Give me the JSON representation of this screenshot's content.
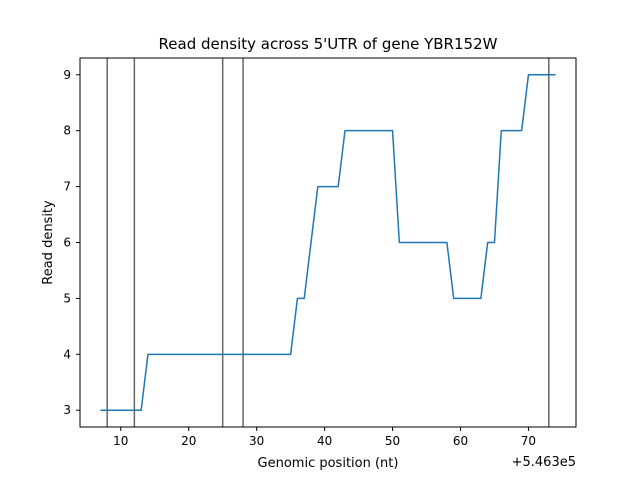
{
  "chart_data": {
    "type": "line",
    "title": "Read density across 5'UTR of gene YBR152W",
    "xlabel": "Genomic position (nt)",
    "ylabel": "Read density",
    "x_offset_label": "+5.463e5",
    "xlim": [
      546304,
      546377
    ],
    "ylim": [
      2.7,
      9.3
    ],
    "x_ticks": [
      546310,
      546320,
      546330,
      546340,
      546350,
      546360,
      546370
    ],
    "x_tick_labels": [
      "10",
      "20",
      "30",
      "40",
      "50",
      "60",
      "70"
    ],
    "y_ticks": [
      3,
      4,
      5,
      6,
      7,
      8,
      9
    ],
    "y_tick_labels": [
      "3",
      "4",
      "5",
      "6",
      "7",
      "8",
      "9"
    ],
    "grid": false,
    "series": [
      {
        "color": "#1f77b4",
        "x": [
          546307,
          546308,
          546309,
          546310,
          546311,
          546312,
          546313,
          546314,
          546315,
          546316,
          546317,
          546318,
          546319,
          546320,
          546321,
          546322,
          546323,
          546324,
          546325,
          546326,
          546327,
          546328,
          546329,
          546330,
          546331,
          546332,
          546333,
          546334,
          546335,
          546336,
          546337,
          546338,
          546339,
          546340,
          546341,
          546342,
          546343,
          546344,
          546345,
          546346,
          546347,
          546348,
          546349,
          546350,
          546351,
          546352,
          546353,
          546354,
          546355,
          546356,
          546357,
          546358,
          546359,
          546360,
          546361,
          546362,
          546363,
          546364,
          546365,
          546366,
          546367,
          546368,
          546369,
          546370,
          546371,
          546372,
          546373,
          546374
        ],
        "values": [
          3,
          3,
          3,
          3,
          3,
          3,
          3,
          4,
          4,
          4,
          4,
          4,
          4,
          4,
          4,
          4,
          4,
          4,
          4,
          4,
          4,
          4,
          4,
          4,
          4,
          4,
          4,
          4,
          4,
          5,
          5,
          6,
          7,
          7,
          7,
          7,
          8,
          8,
          8,
          8,
          8,
          8,
          8,
          8,
          6,
          6,
          6,
          6,
          6,
          6,
          6,
          6,
          5,
          5,
          5,
          5,
          5,
          6,
          6,
          8,
          8,
          8,
          8,
          9,
          9,
          9,
          9,
          9
        ]
      }
    ],
    "vlines": [
      546308,
      546312,
      546325,
      546328,
      546373
    ],
    "vline_color": "#666666"
  }
}
